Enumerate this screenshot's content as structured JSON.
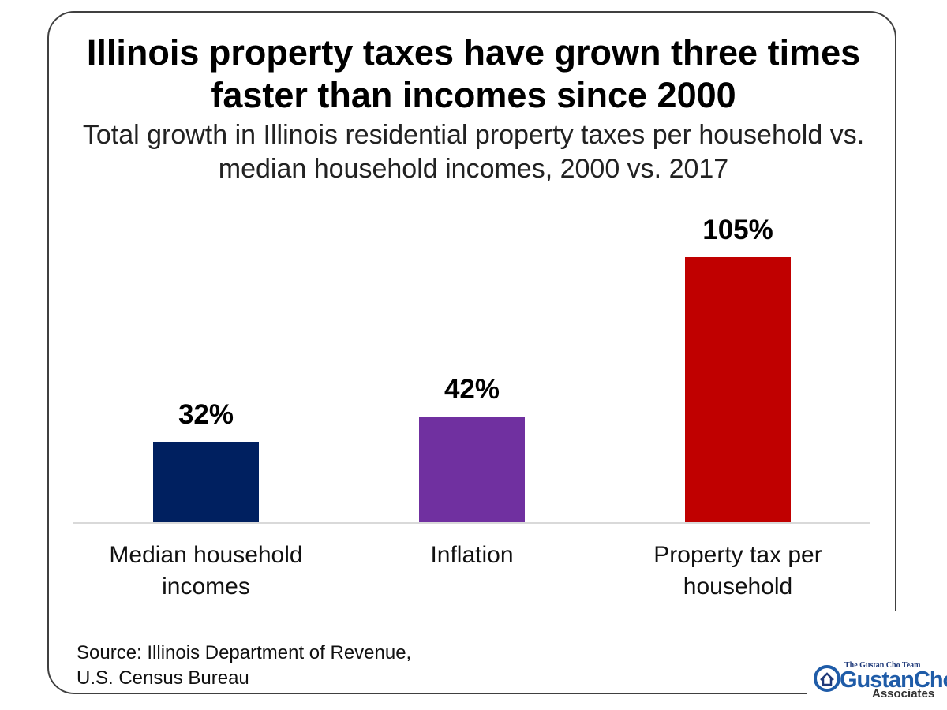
{
  "chart_data": {
    "type": "bar",
    "title": "Illinois property taxes have grown three times faster than incomes since 2000",
    "subtitle": "Total growth in Illinois residential property taxes per household vs. median household incomes, 2000 vs. 2017",
    "categories": [
      "Median household incomes",
      "Inflation",
      "Property tax per household"
    ],
    "values": [
      32,
      42,
      105
    ],
    "value_labels": [
      "32%",
      "42%",
      "105%"
    ],
    "colors": [
      "#002060",
      "#7030a0",
      "#c00000"
    ],
    "source": [
      "Source: Illinois Department of Revenue,",
      "U.S. Census Bureau"
    ]
  },
  "logo": {
    "team": "The Gustan Cho Team",
    "name": "GustanCho",
    "tagline": "Associates"
  }
}
